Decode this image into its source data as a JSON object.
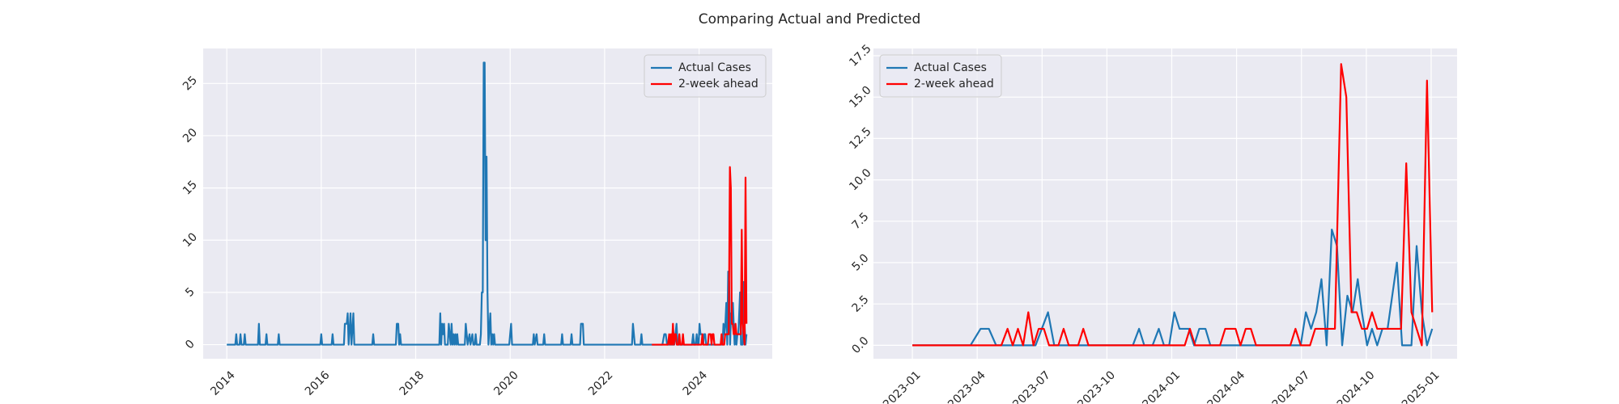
{
  "title": "Comparing Actual and Predicted",
  "chart_data": [
    {
      "type": "line",
      "legend": "upper right",
      "grid": true,
      "xlim": [
        2013.5,
        2025.55
      ],
      "xticks": [
        2014,
        2016,
        2018,
        2020,
        2022,
        2024
      ],
      "ylim": [
        -1.35,
        28.35
      ],
      "yticks": [
        0,
        5,
        10,
        15,
        20,
        25
      ],
      "series": [
        {
          "name": "Actual Cases",
          "color": "#1f77b4",
          "x": [
            2014.0,
            2014.18,
            2014.2,
            2014.22,
            2014.27,
            2014.29,
            2014.31,
            2014.36,
            2014.38,
            2014.4,
            2014.66,
            2014.68,
            2014.7,
            2014.82,
            2014.84,
            2014.86,
            2015.08,
            2015.1,
            2015.12,
            2015.98,
            2016.0,
            2016.02,
            2016.22,
            2016.24,
            2016.26,
            2016.48,
            2016.5,
            2016.54,
            2016.56,
            2016.58,
            2016.62,
            2016.64,
            2016.68,
            2016.7,
            2017.08,
            2017.1,
            2017.12,
            2017.58,
            2017.6,
            2017.63,
            2017.65,
            2017.67,
            2017.69,
            2018.5,
            2018.52,
            2018.54,
            2018.56,
            2018.58,
            2018.6,
            2018.62,
            2018.68,
            2018.7,
            2018.72,
            2018.74,
            2018.76,
            2018.78,
            2018.8,
            2018.82,
            2018.84,
            2018.86,
            2018.88,
            2018.9,
            2019.04,
            2019.06,
            2019.08,
            2019.1,
            2019.14,
            2019.16,
            2019.2,
            2019.22,
            2019.25,
            2019.27,
            2019.29,
            2019.36,
            2019.38,
            2019.4,
            2019.42,
            2019.44,
            2019.46,
            2019.48,
            2019.5,
            2019.52,
            2019.54,
            2019.58,
            2019.6,
            2019.62,
            2019.64,
            2019.66,
            2019.68,
            2019.98,
            2020.0,
            2020.02,
            2020.04,
            2020.48,
            2020.5,
            2020.52,
            2020.56,
            2020.58,
            2020.7,
            2020.72,
            2020.74,
            2021.08,
            2021.1,
            2021.12,
            2021.28,
            2021.3,
            2021.32,
            2021.48,
            2021.5,
            2021.54,
            2021.56,
            2022.58,
            2022.6,
            2022.62,
            2022.64,
            2022.76,
            2022.78,
            2022.8,
            2023.0,
            2023.224,
            2023.263,
            2023.295,
            2023.323,
            2023.475,
            2023.499,
            2023.523,
            2023.547,
            2023.85,
            2023.874,
            2023.894,
            2023.926,
            2023.95,
            2023.97,
            2023.99,
            2024.01,
            2024.03,
            2024.066,
            2024.086,
            2024.106,
            2024.13,
            2024.149,
            2024.497,
            2024.517,
            2024.537,
            2024.557,
            2024.577,
            2024.597,
            2024.617,
            2024.637,
            2024.657,
            2024.677,
            2024.697,
            2024.717,
            2024.733,
            2024.753,
            2024.772,
            2024.792,
            2024.812,
            2024.832,
            2024.868,
            2024.888,
            2024.924,
            2024.944,
            2024.964,
            2024.984,
            2025.004
          ],
          "values": [
            0,
            0,
            1,
            0,
            0,
            1,
            0,
            0,
            1,
            0,
            0,
            2,
            0,
            0,
            1,
            0,
            0,
            1,
            0,
            0,
            1,
            0,
            0,
            1,
            0,
            0,
            2,
            2,
            3,
            0,
            3,
            0,
            3,
            0,
            0,
            1,
            0,
            0,
            2,
            2,
            0,
            1,
            0,
            0,
            3,
            0,
            2,
            1,
            2,
            0,
            0,
            2,
            1,
            0,
            2,
            0,
            1,
            0,
            1,
            0,
            1,
            0,
            0,
            2,
            1,
            0,
            1,
            0,
            1,
            0,
            0,
            1,
            0,
            0,
            1,
            5,
            5,
            27,
            27,
            10,
            18,
            5,
            0,
            3,
            0,
            1,
            0,
            1,
            0,
            0,
            1,
            2,
            0,
            0,
            1,
            0,
            1,
            0,
            0,
            1,
            0,
            0,
            1,
            0,
            0,
            1,
            0,
            0,
            2,
            2,
            0,
            0,
            2,
            1,
            0,
            0,
            1,
            0,
            0,
            0,
            1,
            1,
            0,
            0,
            1,
            2,
            0,
            0,
            1,
            0,
            0,
            1,
            0,
            0,
            2,
            1,
            1,
            0,
            1,
            1,
            0,
            0,
            2,
            1,
            2,
            4,
            0,
            7,
            6,
            0,
            3,
            2,
            4,
            2,
            0,
            1,
            0,
            1,
            1,
            5,
            0,
            0,
            6,
            2,
            0,
            1
          ]
        },
        {
          "name": "2-week ahead",
          "color": "#ff0000",
          "x": [
            2023.0,
            2023.343,
            2023.367,
            2023.387,
            2023.407,
            2023.427,
            2023.447,
            2023.467,
            2023.487,
            2023.507,
            2023.527,
            2023.563,
            2023.583,
            2023.603,
            2023.639,
            2023.659,
            2023.679,
            2024.05,
            2024.07,
            2024.09,
            2024.186,
            2024.206,
            2024.246,
            2024.265,
            2024.285,
            2024.305,
            2024.325,
            2024.457,
            2024.477,
            2024.497,
            2024.533,
            2024.553,
            2024.629,
            2024.653,
            2024.673,
            2024.693,
            2024.713,
            2024.733,
            2024.753,
            2024.772,
            2024.792,
            2024.884,
            2024.904,
            2024.924,
            2024.964,
            2024.984,
            2025.004
          ],
          "values": [
            0,
            0,
            1,
            0,
            1,
            0,
            2,
            0,
            1,
            1,
            0,
            0,
            1,
            0,
            0,
            1,
            0,
            0,
            1,
            0,
            0,
            1,
            1,
            0,
            1,
            1,
            0,
            0,
            1,
            0,
            0,
            1,
            1,
            17,
            15,
            2,
            2,
            1,
            1,
            2,
            1,
            1,
            11,
            2,
            0,
            16,
            2
          ]
        }
      ]
    },
    {
      "type": "line",
      "legend": "upper left",
      "grid": true,
      "xlim": [
        2022.85,
        2025.1
      ],
      "xticks": [
        {
          "value": 2023.0,
          "label": "2023-01"
        },
        {
          "value": 2023.25,
          "label": "2023-04"
        },
        {
          "value": 2023.5,
          "label": "2023-07"
        },
        {
          "value": 2023.75,
          "label": "2023-10"
        },
        {
          "value": 2024.0,
          "label": "2024-01"
        },
        {
          "value": 2024.25,
          "label": "2024-04"
        },
        {
          "value": 2024.5,
          "label": "2024-07"
        },
        {
          "value": 2024.75,
          "label": "2024-10"
        },
        {
          "value": 2025.0,
          "label": "2025-01"
        }
      ],
      "ylim": [
        -0.81,
        17.94
      ],
      "yticks": [
        {
          "value": 0,
          "label": "0.0"
        },
        2.5,
        {
          "value": 5,
          "label": "5.0"
        },
        7.5,
        {
          "value": 10,
          "label": "10.0"
        },
        12.5,
        {
          "value": 15,
          "label": "15.0"
        },
        17.5
      ],
      "series": [
        {
          "name": "Actual Cases",
          "color": "#1f77b4",
          "x": [
            2023.0,
            2023.224,
            2023.263,
            2023.295,
            2023.323,
            2023.475,
            2023.499,
            2023.523,
            2023.547,
            2023.85,
            2023.874,
            2023.894,
            2023.926,
            2023.95,
            2023.97,
            2023.99,
            2024.01,
            2024.03,
            2024.066,
            2024.086,
            2024.106,
            2024.13,
            2024.149,
            2024.497,
            2024.517,
            2024.537,
            2024.557,
            2024.577,
            2024.597,
            2024.617,
            2024.637,
            2024.657,
            2024.677,
            2024.697,
            2024.717,
            2024.733,
            2024.753,
            2024.772,
            2024.792,
            2024.812,
            2024.832,
            2024.868,
            2024.888,
            2024.924,
            2024.944,
            2024.964,
            2024.984,
            2025.004
          ],
          "values": [
            0,
            0,
            1,
            1,
            0,
            0,
            1,
            2,
            0,
            0,
            1,
            0,
            0,
            1,
            0,
            0,
            2,
            1,
            1,
            0,
            1,
            1,
            0,
            0,
            2,
            1,
            2,
            4,
            0,
            7,
            6,
            0,
            3,
            2,
            4,
            2,
            0,
            1,
            0,
            1,
            1,
            5,
            0,
            0,
            6,
            2,
            0,
            1
          ]
        },
        {
          "name": "2-week ahead",
          "color": "#ff0000",
          "x": [
            2023.0,
            2023.343,
            2023.367,
            2023.387,
            2023.407,
            2023.427,
            2023.447,
            2023.467,
            2023.487,
            2023.507,
            2023.527,
            2023.563,
            2023.583,
            2023.603,
            2023.639,
            2023.659,
            2023.679,
            2024.05,
            2024.07,
            2024.09,
            2024.186,
            2024.206,
            2024.246,
            2024.265,
            2024.285,
            2024.305,
            2024.325,
            2024.457,
            2024.477,
            2024.497,
            2024.533,
            2024.553,
            2024.629,
            2024.653,
            2024.673,
            2024.693,
            2024.713,
            2024.733,
            2024.753,
            2024.772,
            2024.792,
            2024.884,
            2024.904,
            2024.924,
            2024.964,
            2024.984,
            2025.004
          ],
          "values": [
            0,
            0,
            1,
            0,
            1,
            0,
            2,
            0,
            1,
            1,
            0,
            0,
            1,
            0,
            0,
            1,
            0,
            0,
            1,
            0,
            0,
            1,
            1,
            0,
            1,
            1,
            0,
            0,
            1,
            0,
            0,
            1,
            1,
            17,
            15,
            2,
            2,
            1,
            1,
            2,
            1,
            1,
            11,
            2,
            0,
            16,
            2
          ]
        }
      ]
    }
  ]
}
